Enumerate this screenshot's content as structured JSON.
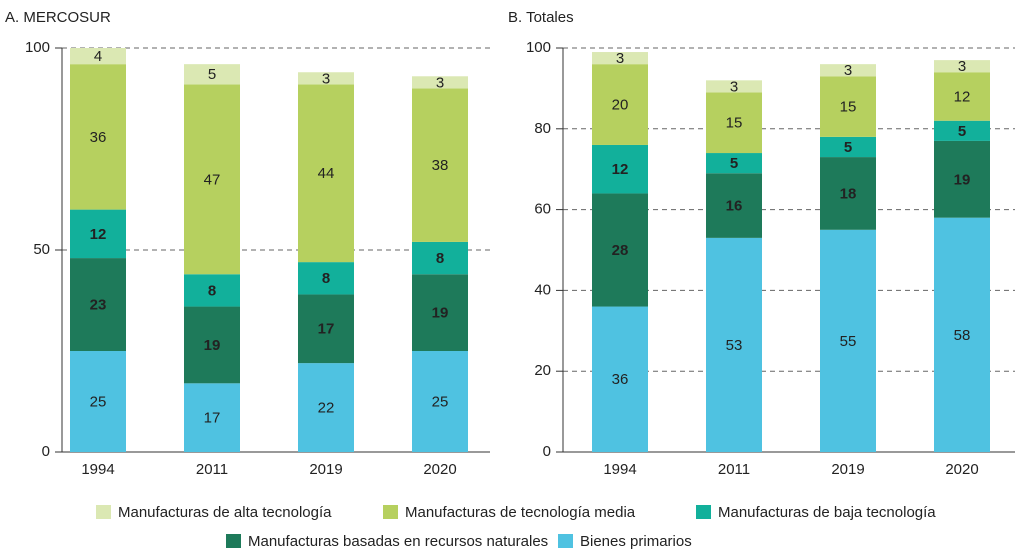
{
  "chart_data": [
    {
      "type": "bar",
      "stacked": true,
      "title": "A. MERCOSUR",
      "categories": [
        "1994",
        "2011",
        "2019",
        "2020"
      ],
      "ylim": [
        0,
        100
      ],
      "yticks": [
        0,
        50,
        100
      ],
      "grid": true,
      "series": [
        {
          "name": "Manufacturas de alta tecnología",
          "color": "#dbe8b3",
          "values": [
            4,
            5,
            3,
            3
          ]
        },
        {
          "name": "Manufacturas de tecnología media",
          "color": "#b6d05f",
          "values": [
            36,
            47,
            44,
            38
          ]
        },
        {
          "name": "Manufacturas de baja tecnología",
          "color": "#12b09b",
          "values": [
            12,
            8,
            8,
            8
          ]
        },
        {
          "name": "Manufacturas basadas en recursos naturales",
          "color": "#1e7a5a",
          "values": [
            23,
            19,
            17,
            19
          ]
        },
        {
          "name": "Bienes primarios",
          "color": "#4fc2e1",
          "values": [
            25,
            17,
            22,
            25
          ]
        }
      ]
    },
    {
      "type": "bar",
      "stacked": true,
      "title": "B. Totales",
      "categories": [
        "1994",
        "2011",
        "2019",
        "2020"
      ],
      "ylim": [
        0,
        100
      ],
      "yticks": [
        0,
        20,
        40,
        60,
        80,
        100
      ],
      "grid": true,
      "series": [
        {
          "color": "#dbe8b3",
          "values": [
            3,
            3,
            3,
            3
          ]
        },
        {
          "color": "#b6d05f",
          "values": [
            20,
            15,
            15,
            12
          ]
        },
        {
          "color": "#12b09b",
          "values": [
            12,
            5,
            5,
            5
          ]
        },
        {
          "color": "#1e7a5a",
          "values": [
            28,
            16,
            18,
            19
          ]
        },
        {
          "color": "#4fc2e1",
          "values": [
            36,
            53,
            55,
            58
          ]
        }
      ]
    }
  ]
}
